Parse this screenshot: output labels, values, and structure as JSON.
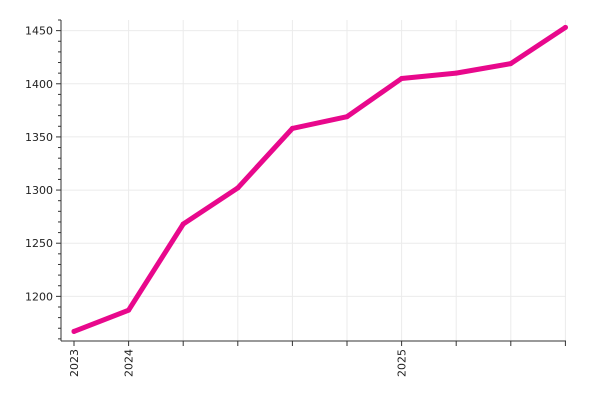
{
  "chart_data": {
    "type": "line",
    "title": "",
    "xlabel": "",
    "ylabel": "",
    "grid": true,
    "legend": "none",
    "line_color": "#e8088c",
    "x_ticks": [
      "",
      "2023",
      "2024",
      "",
      "",
      "",
      "",
      "2025",
      "",
      "",
      ""
    ],
    "y_ticks": [
      1200,
      1250,
      1300,
      1350,
      1400,
      1450
    ],
    "ylim": [
      1158,
      1460
    ],
    "series": [
      {
        "values": [
          1167,
          1187,
          1268,
          1302,
          1358,
          1369,
          1405,
          1410,
          1419,
          1453
        ]
      }
    ]
  }
}
